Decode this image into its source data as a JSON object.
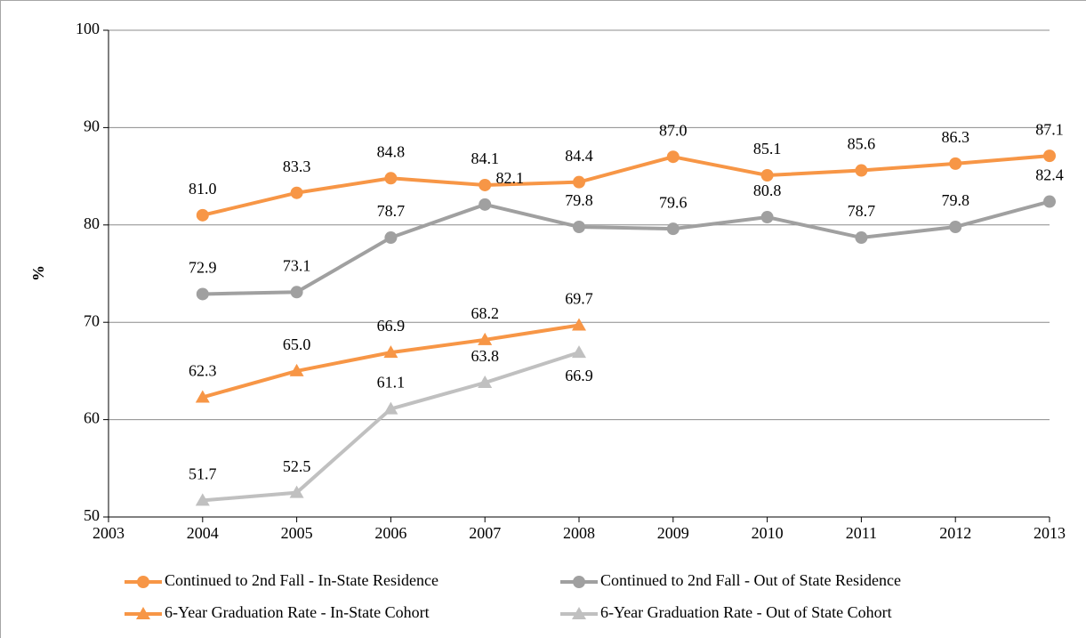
{
  "chart_data": {
    "type": "line",
    "ylabel": "%",
    "x": [
      2004,
      2005,
      2006,
      2007,
      2008,
      2009,
      2010,
      2011,
      2012,
      2013
    ],
    "xlim": [
      2003,
      2013
    ],
    "xticks": [
      2003,
      2004,
      2005,
      2006,
      2007,
      2008,
      2009,
      2010,
      2011,
      2012,
      2013
    ],
    "ylim": [
      50,
      100
    ],
    "yticks": [
      50,
      60,
      70,
      80,
      90,
      100
    ],
    "grid": true,
    "legend": "bottom",
    "series": [
      {
        "name": "Continued to 2nd Fall - In-State Residence",
        "color": "#f79646",
        "marker": "circle",
        "values": [
          81.0,
          83.3,
          84.8,
          84.1,
          84.4,
          87.0,
          85.1,
          85.6,
          86.3,
          87.1
        ],
        "value_labels": [
          "81.0",
          "83.3",
          "84.8",
          "84.1",
          "84.4",
          "87.0",
          "85.1",
          "85.6",
          "86.3",
          "87.1"
        ]
      },
      {
        "name": "Continued to 2nd Fall - Out of State Residence",
        "color": "#a0a0a0",
        "marker": "circle",
        "values": [
          72.9,
          73.1,
          78.7,
          82.1,
          79.8,
          79.6,
          80.8,
          78.7,
          79.8,
          82.4
        ],
        "value_labels": [
          "72.9",
          "73.1",
          "78.7",
          "82.1",
          "79.8",
          "79.6",
          "80.8",
          "78.7",
          "79.8",
          "82.4"
        ]
      },
      {
        "name": "6-Year Graduation Rate - In-State Cohort",
        "color": "#f79646",
        "marker": "triangle",
        "values": [
          62.3,
          65.0,
          66.9,
          68.2,
          69.7,
          null,
          null,
          null,
          null,
          null
        ],
        "value_labels": [
          "62.3",
          "65.0",
          "66.9",
          "68.2",
          "69.7",
          null,
          null,
          null,
          null,
          null
        ]
      },
      {
        "name": "6-Year Graduation Rate - Out of State Cohort",
        "color": "#c0c0c0",
        "marker": "triangle",
        "values": [
          51.7,
          52.5,
          61.1,
          63.8,
          66.9,
          null,
          null,
          null,
          null,
          null
        ],
        "value_labels": [
          "51.7",
          "52.5",
          "61.1",
          "63.8",
          "66.9",
          null,
          null,
          null,
          null,
          null
        ]
      }
    ]
  }
}
